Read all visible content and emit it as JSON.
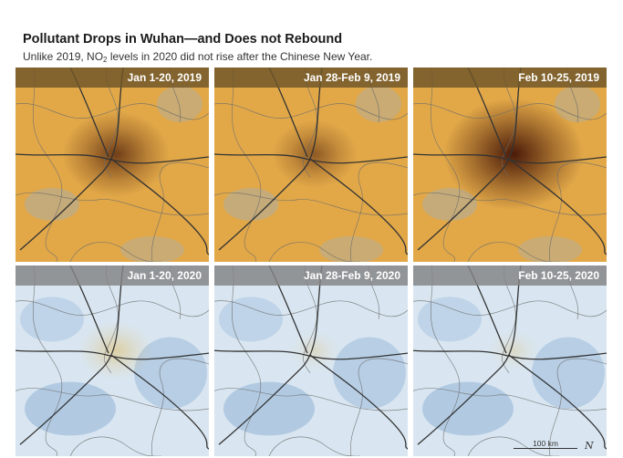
{
  "title": "Pollutant Drops in Wuhan—and Does not Rebound",
  "subtitle": {
    "pre": "Unlike 2019, NO",
    "sub": "2",
    "post": " levels in 2020 did not rise after the Chinese New Year."
  },
  "panels": [
    {
      "label": "Jan 1-20, 2019",
      "level": 0.65,
      "theme": "warm"
    },
    {
      "label": "Jan 28-Feb 9, 2019",
      "level": 0.45,
      "theme": "warm"
    },
    {
      "label": "Feb 10-25, 2019",
      "level": 0.95,
      "theme": "warm"
    },
    {
      "label": "Jan 1-20, 2020",
      "level": 0.35,
      "theme": "cool"
    },
    {
      "label": "Jan 28-Feb 9, 2020",
      "level": 0.15,
      "theme": "cool"
    },
    {
      "label": "Feb 10-25, 2020",
      "level": 0.15,
      "theme": "cool"
    }
  ],
  "scale": {
    "label": "100 km"
  },
  "north_arrow": "N",
  "colors": {
    "warm_base": "#e2a848",
    "warm_hotspot": "#4a1a08",
    "cool_base": "#d9e6f1",
    "cool_blue": "#8fb2d6",
    "cool_hotspot": "#e2b548",
    "roads": "#333333",
    "borders": "#6c6c6c"
  }
}
